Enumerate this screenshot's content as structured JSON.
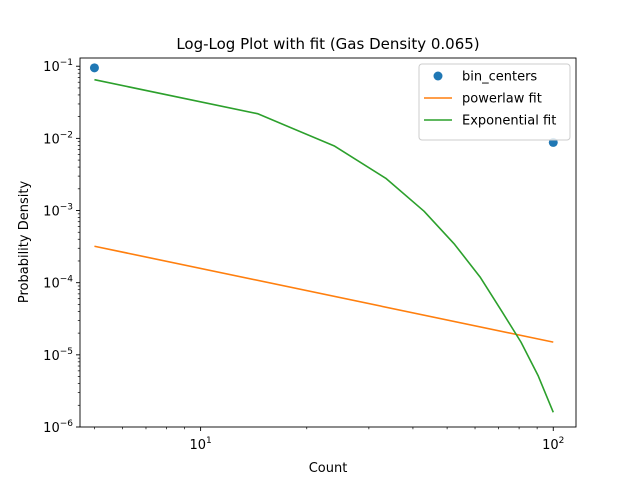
{
  "chart_data": {
    "type": "line",
    "title": "Log-Log Plot with fit (Gas Density 0.065)",
    "xlabel": "Count",
    "ylabel": "Probability Density",
    "xscale": "log",
    "yscale": "log",
    "xlim": [
      4.55,
      116
    ],
    "ylim": [
      1e-06,
      0.13
    ],
    "x_ticks": [
      {
        "base": "10",
        "exp": "1",
        "value": 10
      },
      {
        "base": "10",
        "exp": "2",
        "value": 100
      }
    ],
    "y_ticks": [
      {
        "base": "10",
        "exp": "−6",
        "value": 1e-06
      },
      {
        "base": "10",
        "exp": "−5",
        "value": 1e-05
      },
      {
        "base": "10",
        "exp": "−4",
        "value": 0.0001
      },
      {
        "base": "10",
        "exp": "−3",
        "value": 0.001
      },
      {
        "base": "10",
        "exp": "−2",
        "value": 0.01
      },
      {
        "base": "10",
        "exp": "−1",
        "value": 0.1
      }
    ],
    "grid": false,
    "legend_position": "top-right",
    "series": [
      {
        "name": "bin_centers",
        "kind": "scatter",
        "color": "#1f77b4",
        "x": [
          5.0,
          100.0
        ],
        "y": [
          0.095,
          0.0088
        ]
      },
      {
        "name": "powerlaw fit",
        "kind": "line",
        "color": "#ff7f0e",
        "x": [
          5.0,
          100.0
        ],
        "y": [
          0.00032,
          1.5e-05
        ]
      },
      {
        "name": "Exponential fit",
        "kind": "line",
        "color": "#2ca02c",
        "x": [
          5.0,
          14.5,
          24.0,
          33.5,
          43.0,
          52.5,
          62.0,
          71.5,
          81.0,
          90.5,
          100.0
        ],
        "y": [
          0.065,
          0.022,
          0.0078,
          0.0028,
          0.00098,
          0.00034,
          0.00012,
          4e-05,
          1.5e-05,
          5.2e-06,
          1.6e-06
        ]
      }
    ]
  }
}
